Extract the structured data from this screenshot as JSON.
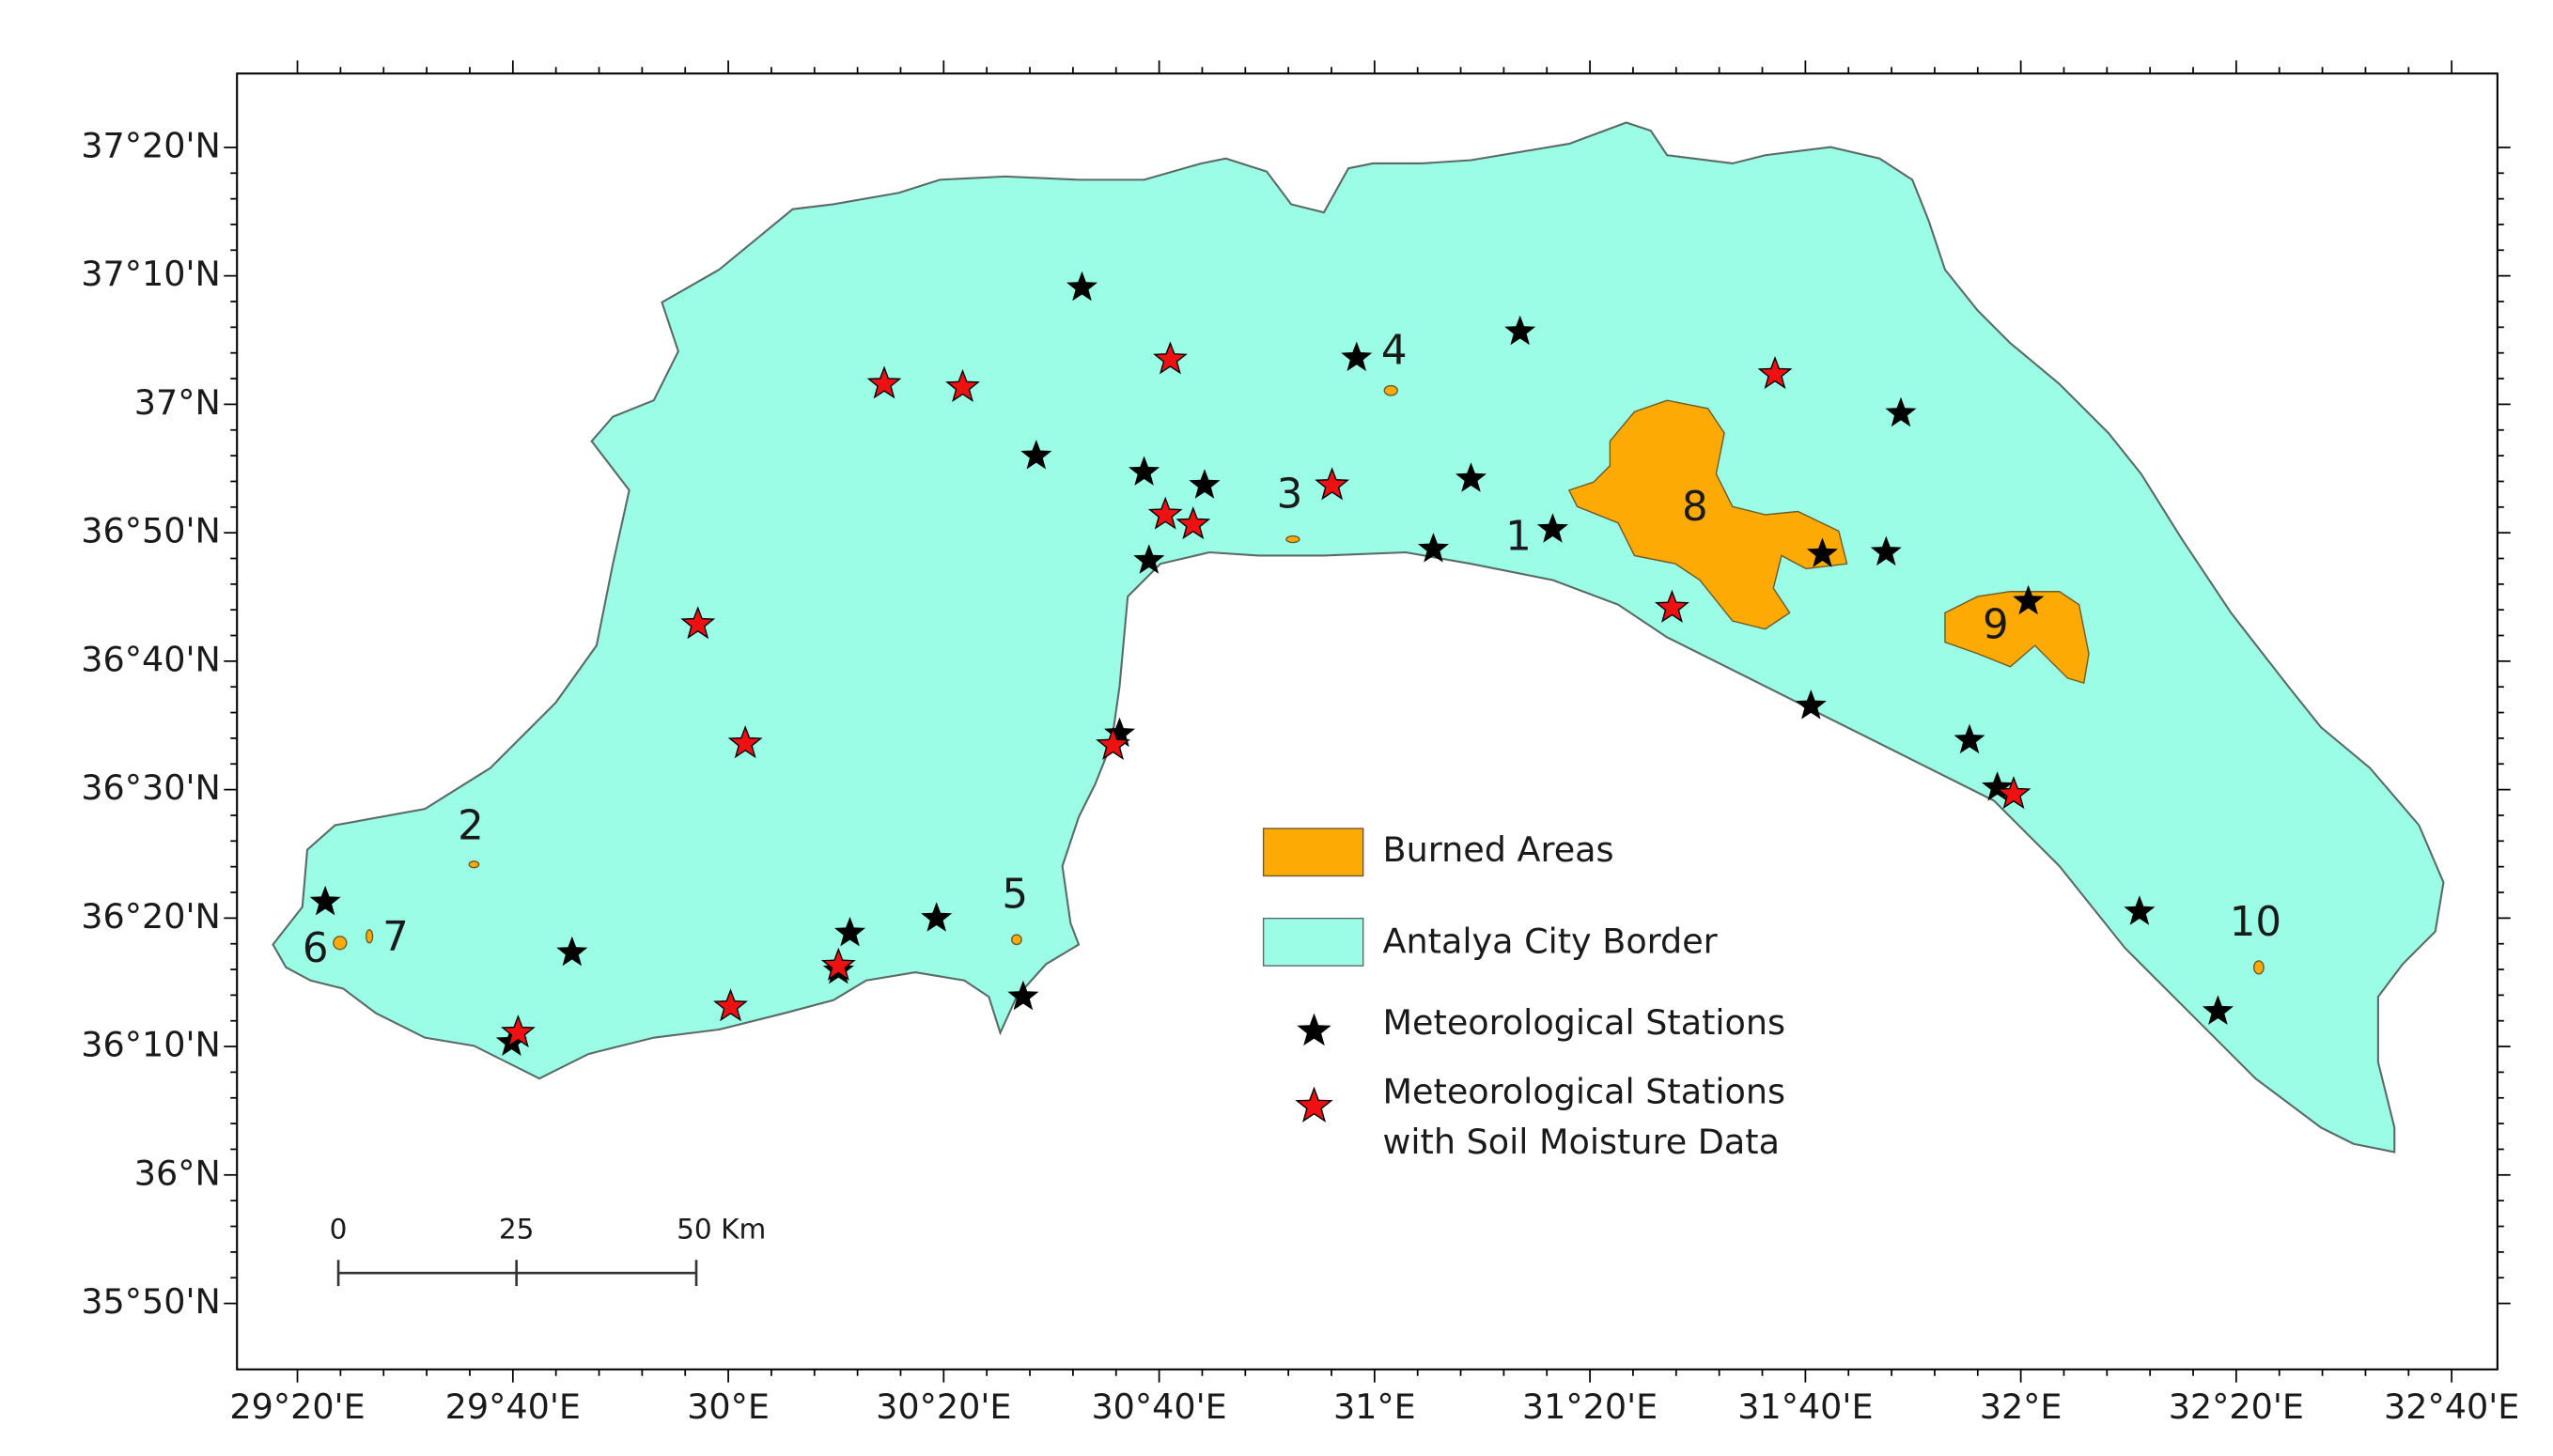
{
  "map": {
    "xlim": [
      29.2398,
      32.7375
    ],
    "ylim": [
      35.7477,
      37.4292
    ],
    "y_axis": {
      "ticks": [
        {
          "value": 37.3333,
          "label": "37°20'N"
        },
        {
          "value": 37.1667,
          "label": "37°10'N"
        },
        {
          "value": 37,
          "label": "37°N"
        },
        {
          "value": 36.8333,
          "label": "36°50'N"
        },
        {
          "value": 36.6667,
          "label": "36°40'N"
        },
        {
          "value": 36.5,
          "label": "36°30'N"
        },
        {
          "value": 36.3333,
          "label": "36°20'N"
        },
        {
          "value": 36.1667,
          "label": "36°10'N"
        },
        {
          "value": 36,
          "label": "36°N"
        },
        {
          "value": 35.8333,
          "label": "35°50'N"
        }
      ]
    },
    "x_axis": {
      "ticks": [
        {
          "value": 29.3333,
          "label": "29°20'E"
        },
        {
          "value": 29.6667,
          "label": "29°40'E"
        },
        {
          "value": 30,
          "label": "30°E"
        },
        {
          "value": 30.3333,
          "label": "30°20'E"
        },
        {
          "value": 30.6667,
          "label": "30°40'E"
        },
        {
          "value": 31,
          "label": "31°E"
        },
        {
          "value": 31.3333,
          "label": "31°20'E"
        },
        {
          "value": 31.6667,
          "label": "31°40'E"
        },
        {
          "value": 32,
          "label": "32°E"
        },
        {
          "value": 32.3333,
          "label": "32°20'E"
        },
        {
          "value": 32.6667,
          "label": "32°40'E"
        }
      ]
    },
    "area_labels": [
      "1",
      "2",
      "3",
      "4",
      "5",
      "6",
      "7",
      "8",
      "9",
      "10"
    ],
    "legend": {
      "burned": "Burned Areas",
      "border": "Antalya City Border",
      "stations": "Meteorological Stations",
      "soil_stations": [
        "Meteorological Stations",
        "with Soil Moisture Data"
      ]
    },
    "scale_bar": [
      "0",
      "25",
      "50 Km"
    ]
  }
}
